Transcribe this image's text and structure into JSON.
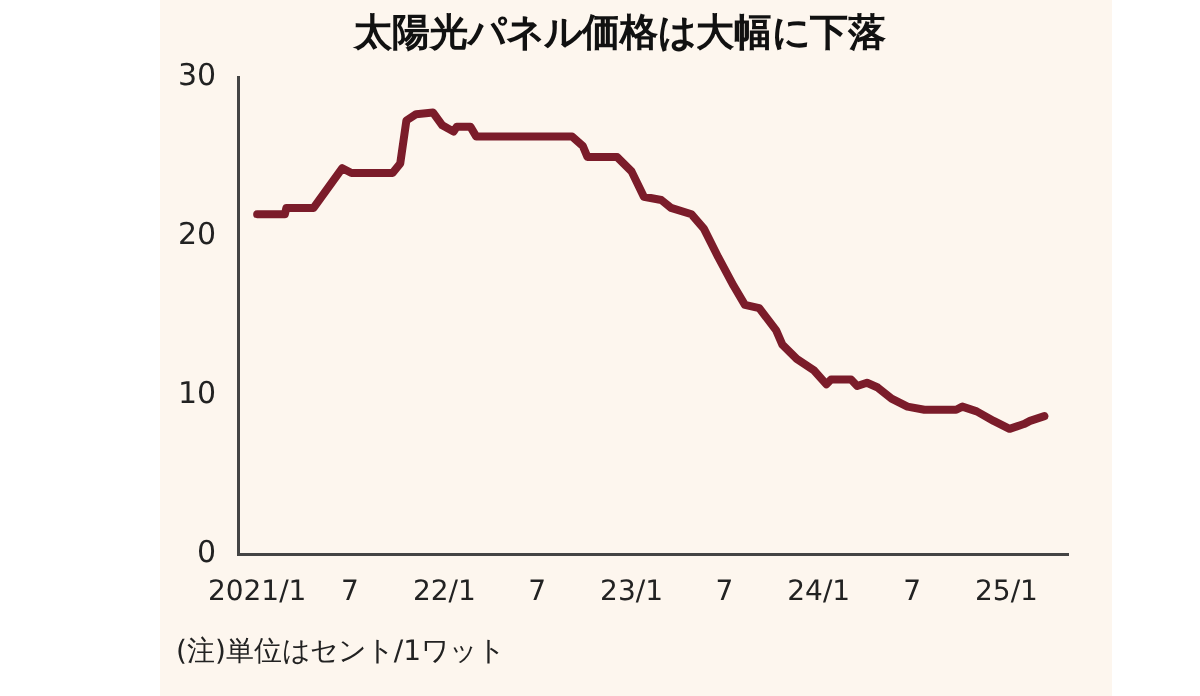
{
  "chart_data": {
    "type": "line",
    "title": "太陽光パネル価格は大幅に下落",
    "annotations": [
      "(注)単位はセント/1ワット"
    ],
    "xlim": [
      "2020-11-25",
      "2025-05-01"
    ],
    "xticks": [
      {
        "value": "2021-01",
        "label": "2021/1"
      },
      {
        "value": "2021-07",
        "label": "7"
      },
      {
        "value": "2022-01",
        "label": "22/1"
      },
      {
        "value": "2022-07",
        "label": "7"
      },
      {
        "value": "2023-01",
        "label": "23/1"
      },
      {
        "value": "2023-07",
        "label": "7"
      },
      {
        "value": "2024-01",
        "label": "24/1"
      },
      {
        "value": "2024-07",
        "label": "7"
      },
      {
        "value": "2025-01",
        "label": "25/1"
      }
    ],
    "ylim": [
      0,
      30
    ],
    "yticks": [
      0,
      10,
      20,
      30
    ],
    "grid": false,
    "legend": false,
    "marker": "none",
    "line_style": "solid",
    "series": [
      {
        "color": "#7b1c2a",
        "x": [
          "2021-01-01",
          "2021-02-24",
          "2021-02-27",
          "2021-04-21",
          "2021-06-16",
          "2021-07-04",
          "2021-09-22",
          "2021-10-07",
          "2021-10-19",
          "2021-11-07",
          "2021-12-10",
          "2021-12-28",
          "2022-01-19",
          "2022-01-25",
          "2022-02-21",
          "2022-03-04",
          "2022-09-07",
          "2022-09-28",
          "2022-10-07",
          "2022-12-04",
          "2023-01-01",
          "2023-01-25",
          "2023-02-28",
          "2023-03-19",
          "2023-04-28",
          "2023-05-22",
          "2023-06-19",
          "2023-07-19",
          "2023-08-10",
          "2023-09-07",
          "2023-10-10",
          "2023-10-22",
          "2023-11-19",
          "2023-12-22",
          "2024-01-16",
          "2024-01-25",
          "2024-03-04",
          "2024-03-16",
          "2024-04-04",
          "2024-04-25",
          "2024-05-22",
          "2024-06-22",
          "2024-07-25",
          "2024-09-25",
          "2024-10-07",
          "2024-11-04",
          "2024-12-07",
          "2025-01-07",
          "2025-02-04",
          "2025-02-16",
          "2025-03-16"
        ],
        "values": [
          21.4,
          21.4,
          21.8,
          21.8,
          24.3,
          24.0,
          24.0,
          24.6,
          27.3,
          27.7,
          27.8,
          27.0,
          26.6,
          26.9,
          26.9,
          26.3,
          26.3,
          25.7,
          25.0,
          25.0,
          24.1,
          22.5,
          22.3,
          21.8,
          21.4,
          20.5,
          18.7,
          16.9,
          15.7,
          15.5,
          14.1,
          13.2,
          12.3,
          11.6,
          10.7,
          11.0,
          11.0,
          10.6,
          10.8,
          10.5,
          9.8,
          9.3,
          9.1,
          9.1,
          9.3,
          9.0,
          8.4,
          7.9,
          8.2,
          8.4,
          8.7
        ]
      }
    ]
  }
}
